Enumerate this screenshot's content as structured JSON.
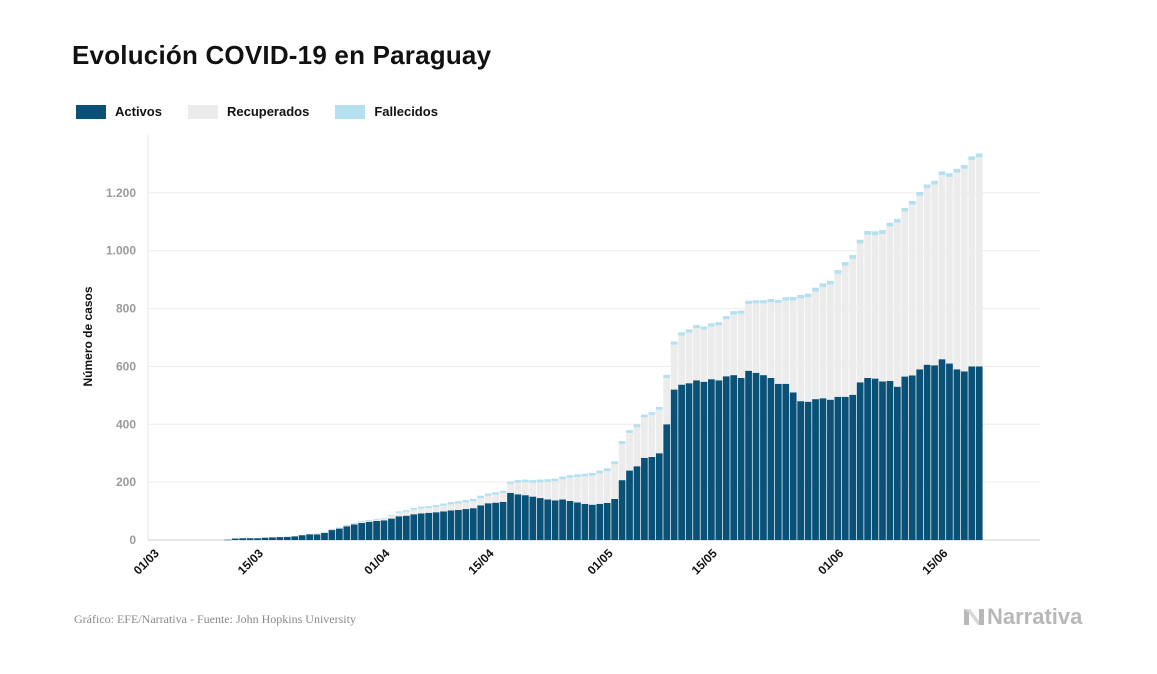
{
  "title": "Evolución COVID-19 en Paraguay",
  "legend": [
    {
      "label": "Activos",
      "color": "#0a5177"
    },
    {
      "label": "Recuperados",
      "color": "#ececec"
    },
    {
      "label": "Fallecidos",
      "color": "#b5e0ef"
    }
  ],
  "footer": {
    "source": "Gráfico: EFE/Narrativa - Fuente: John Hopkins University",
    "brand": "Narrativa"
  },
  "chart_data": {
    "type": "bar",
    "stacked": true,
    "ylabel": "Número de casos",
    "ylim": [
      0,
      1400
    ],
    "y_ticks": [
      0,
      200,
      400,
      600,
      800,
      1000,
      1200
    ],
    "y_tick_labels": [
      "0",
      "200",
      "400",
      "600",
      "800",
      "1.000",
      "1.200"
    ],
    "grid": true,
    "legend_position": "top-left",
    "x_tick_labels": [
      {
        "label": "01/03",
        "index": 0
      },
      {
        "label": "15/03",
        "index": 14
      },
      {
        "label": "01/04",
        "index": 31
      },
      {
        "label": "15/04",
        "index": 45
      },
      {
        "label": "01/05",
        "index": 61
      },
      {
        "label": "15/05",
        "index": 75
      },
      {
        "label": "01/06",
        "index": 92
      },
      {
        "label": "15/06",
        "index": 106
      }
    ],
    "x": [
      "01/03",
      "02/03",
      "03/03",
      "04/03",
      "05/03",
      "06/03",
      "07/03",
      "08/03",
      "09/03",
      "10/03",
      "11/03",
      "12/03",
      "13/03",
      "14/03",
      "15/03",
      "16/03",
      "17/03",
      "18/03",
      "19/03",
      "20/03",
      "21/03",
      "22/03",
      "23/03",
      "24/03",
      "25/03",
      "26/03",
      "27/03",
      "28/03",
      "29/03",
      "30/03",
      "31/03",
      "01/04",
      "02/04",
      "03/04",
      "04/04",
      "05/04",
      "06/04",
      "07/04",
      "08/04",
      "09/04",
      "10/04",
      "11/04",
      "12/04",
      "13/04",
      "14/04",
      "15/04",
      "16/04",
      "17/04",
      "18/04",
      "19/04",
      "20/04",
      "21/04",
      "22/04",
      "23/04",
      "24/04",
      "25/04",
      "26/04",
      "27/04",
      "28/04",
      "29/04",
      "30/04",
      "01/05",
      "02/05",
      "03/05",
      "04/05",
      "05/05",
      "06/05",
      "07/05",
      "08/05",
      "09/05",
      "10/05",
      "11/05",
      "12/05",
      "13/05",
      "14/05",
      "15/05",
      "16/05",
      "17/05",
      "18/05",
      "19/05",
      "20/05",
      "21/05",
      "22/05",
      "23/05",
      "24/05",
      "25/05",
      "26/05",
      "27/05",
      "28/05",
      "29/05",
      "30/05",
      "31/05",
      "01/06",
      "02/06",
      "03/06",
      "04/06",
      "05/06",
      "06/06",
      "07/06",
      "08/06",
      "09/06",
      "10/06",
      "11/06",
      "12/06",
      "13/06",
      "14/06",
      "15/06",
      "16/06",
      "17/06",
      "18/06",
      "19/06",
      "20/06"
    ],
    "series": [
      {
        "name": "Activos",
        "color": "#0a5177",
        "values": [
          0,
          0,
          0,
          0,
          0,
          0,
          0,
          0,
          0,
          0,
          1,
          5,
          6,
          6,
          6,
          8,
          9,
          10,
          11,
          13,
          17,
          20,
          20,
          25,
          35,
          40,
          48,
          54,
          59,
          63,
          66,
          68,
          74,
          82,
          84,
          89,
          92,
          94,
          96,
          99,
          102,
          104,
          107,
          110,
          120,
          127,
          129,
          132,
          163,
          158,
          155,
          150,
          145,
          140,
          137,
          140,
          135,
          130,
          125,
          122,
          125,
          128,
          142,
          207,
          240,
          255,
          284,
          287,
          300,
          400,
          520,
          537,
          542,
          552,
          547,
          556,
          552,
          566,
          570,
          560,
          585,
          578,
          570,
          560,
          540,
          540,
          510,
          480,
          478,
          487,
          490,
          485,
          495,
          495,
          502,
          545,
          560,
          558,
          548,
          550,
          530,
          565,
          569,
          590,
          606,
          604,
          625,
          610,
          590,
          583,
          600,
          600
        ]
      },
      {
        "name": "Recuperados",
        "color": "#ececec",
        "values": [
          0,
          0,
          0,
          0,
          0,
          0,
          0,
          0,
          0,
          0,
          0,
          0,
          0,
          0,
          0,
          0,
          0,
          0,
          0,
          0,
          0,
          0,
          1,
          1,
          1,
          1,
          1,
          2,
          3,
          3,
          4,
          4,
          10,
          12,
          14,
          16,
          17,
          17,
          18,
          20,
          21,
          22,
          23,
          24,
          25,
          26,
          28,
          30,
          31,
          40,
          45,
          48,
          55,
          61,
          66,
          70,
          80,
          88,
          95,
          100,
          105,
          110,
          120,
          125,
          130,
          135,
          140,
          145,
          150,
          160,
          155,
          170,
          175,
          180,
          180,
          182,
          190,
          197,
          210,
          222,
          231,
          240,
          248,
          262,
          279,
          288,
          318,
          355,
          361,
          372,
          384,
          398,
          425,
          453,
          470,
          480,
          495,
          496,
          510,
          534,
          567,
          570,
          590,
          600,
          610,
          625,
          636,
          645,
          680,
          700,
          713,
          723
        ]
      },
      {
        "name": "Fallecidos",
        "color": "#b5e0ef",
        "values": [
          0,
          0,
          0,
          0,
          0,
          0,
          0,
          0,
          0,
          0,
          0,
          0,
          0,
          0,
          0,
          0,
          0,
          0,
          1,
          1,
          1,
          1,
          2,
          2,
          2,
          2,
          3,
          3,
          3,
          3,
          3,
          3,
          3,
          5,
          5,
          6,
          6,
          6,
          7,
          7,
          8,
          8,
          8,
          8,
          8,
          8,
          8,
          8,
          8,
          9,
          9,
          9,
          9,
          9,
          9,
          9,
          9,
          9,
          9,
          10,
          10,
          10,
          10,
          10,
          10,
          10,
          10,
          10,
          10,
          11,
          11,
          11,
          11,
          11,
          11,
          11,
          11,
          11,
          11,
          11,
          11,
          11,
          11,
          11,
          11,
          11,
          12,
          12,
          13,
          13,
          13,
          13,
          13,
          13,
          13,
          13,
          13,
          13,
          13,
          13,
          13,
          13,
          13,
          13,
          13,
          13,
          13,
          13,
          13,
          13,
          13,
          13
        ]
      }
    ]
  }
}
